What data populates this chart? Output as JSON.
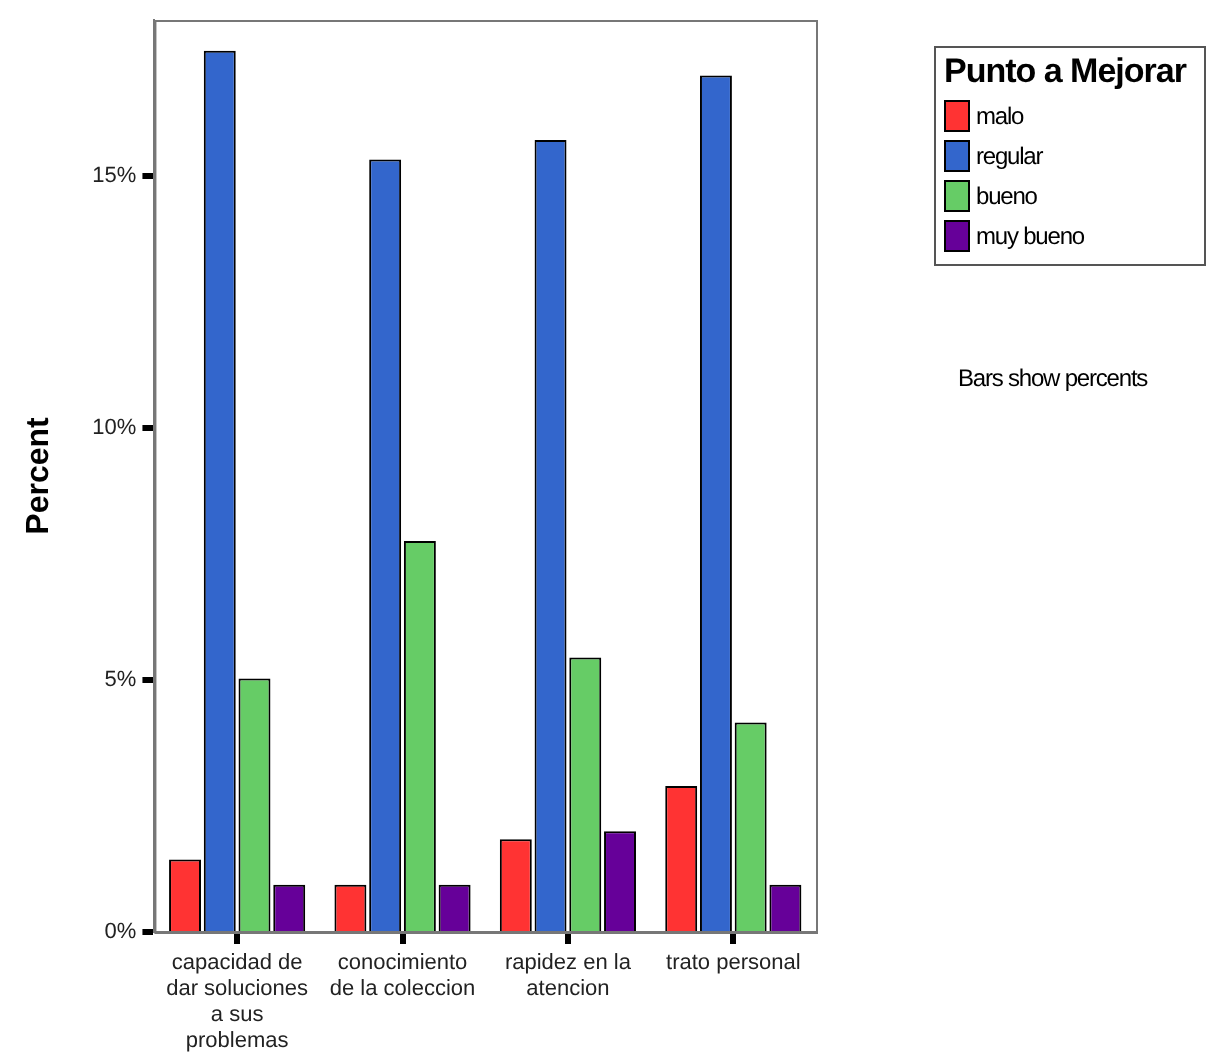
{
  "chart_data": {
    "type": "bar",
    "ylabel": "Percent",
    "legend_title": "Punto a Mejorar",
    "legend": "right",
    "grid": false,
    "categories": [
      "capacidad de dar soluciones a sus problemas",
      "conocimiento de la coleccion",
      "rapidez en la atencion",
      "trato personal"
    ],
    "series": [
      {
        "name": "malo",
        "color": "#ff3333",
        "values": [
          1.44,
          0.94,
          1.84,
          2.9
        ]
      },
      {
        "name": "regular",
        "color": "#3366cc",
        "values": [
          17.49,
          15.33,
          15.72,
          17.0
        ]
      },
      {
        "name": "bueno",
        "color": "#66cc66",
        "values": [
          5.03,
          7.76,
          5.45,
          4.16
        ]
      },
      {
        "name": "muy bueno",
        "color": "#660099",
        "values": [
          0.94,
          0.94,
          2.0,
          0.94
        ]
      }
    ],
    "ylim": [
      0,
      18.1
    ],
    "yticks": [
      {
        "value": 0,
        "label": "0%"
      },
      {
        "value": 5,
        "label": "5%"
      },
      {
        "value": 10,
        "label": "10%"
      },
      {
        "value": 15,
        "label": "15%"
      }
    ],
    "annotations": [
      "Bars show percents"
    ]
  }
}
